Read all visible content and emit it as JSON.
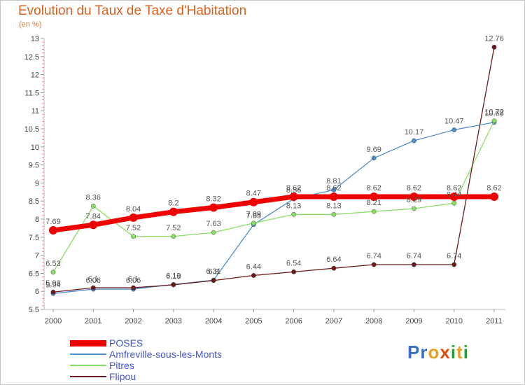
{
  "title": "Evolution du Taux de Taxe d'Habitation",
  "unit_label": "(en %)",
  "logo_text": "Proxiti",
  "colors": {
    "title": "#d9601e",
    "logo_p": "#3b6fc4",
    "logo_r": "#3b6fc4",
    "logo_o": "#e8a020",
    "logo_x": "#e04c10",
    "logo_i": "#2a9a3a",
    "logo_t": "#e8a020",
    "logo_i2": "#2a9a3a"
  },
  "chart_data": {
    "type": "line",
    "title": "Evolution du Taux de Taxe d'Habitation",
    "ylabel": "(en %)",
    "xlabel": "",
    "x": [
      2000,
      2001,
      2002,
      2003,
      2004,
      2005,
      2006,
      2007,
      2008,
      2009,
      2010,
      2011
    ],
    "ylim": [
      5.5,
      13
    ],
    "yticks": [
      5.5,
      6,
      6.5,
      7,
      7.5,
      8,
      8.5,
      9,
      9.5,
      10,
      10.5,
      11,
      11.5,
      12,
      12.5,
      13
    ],
    "grid": false,
    "legend_position": "bottom-left",
    "series": [
      {
        "name": "POSES",
        "color": "#ee0000",
        "values": [
          7.69,
          7.84,
          8.04,
          8.2,
          8.32,
          8.47,
          8.62,
          8.62,
          8.62,
          8.62,
          8.62,
          8.62
        ]
      },
      {
        "name": "Amfreville-sous-les-Monts",
        "color": "#4f8fcc",
        "values": [
          5.94,
          6.06,
          6.06,
          6.19,
          6.31,
          7.85,
          8.56,
          8.81,
          9.69,
          10.17,
          10.47,
          10.68
        ]
      },
      {
        "name": "Pitres",
        "color": "#88dd66",
        "values": [
          6.53,
          8.36,
          7.52,
          7.52,
          7.63,
          7.89,
          8.13,
          8.13,
          8.21,
          8.29,
          8.44,
          10.72
        ]
      },
      {
        "name": "Flipou",
        "color": "#6b1a1a",
        "values": [
          5.98,
          6.1,
          6.1,
          6.18,
          6.3,
          6.44,
          6.54,
          6.64,
          6.74,
          6.74,
          6.74,
          12.76
        ]
      }
    ]
  }
}
